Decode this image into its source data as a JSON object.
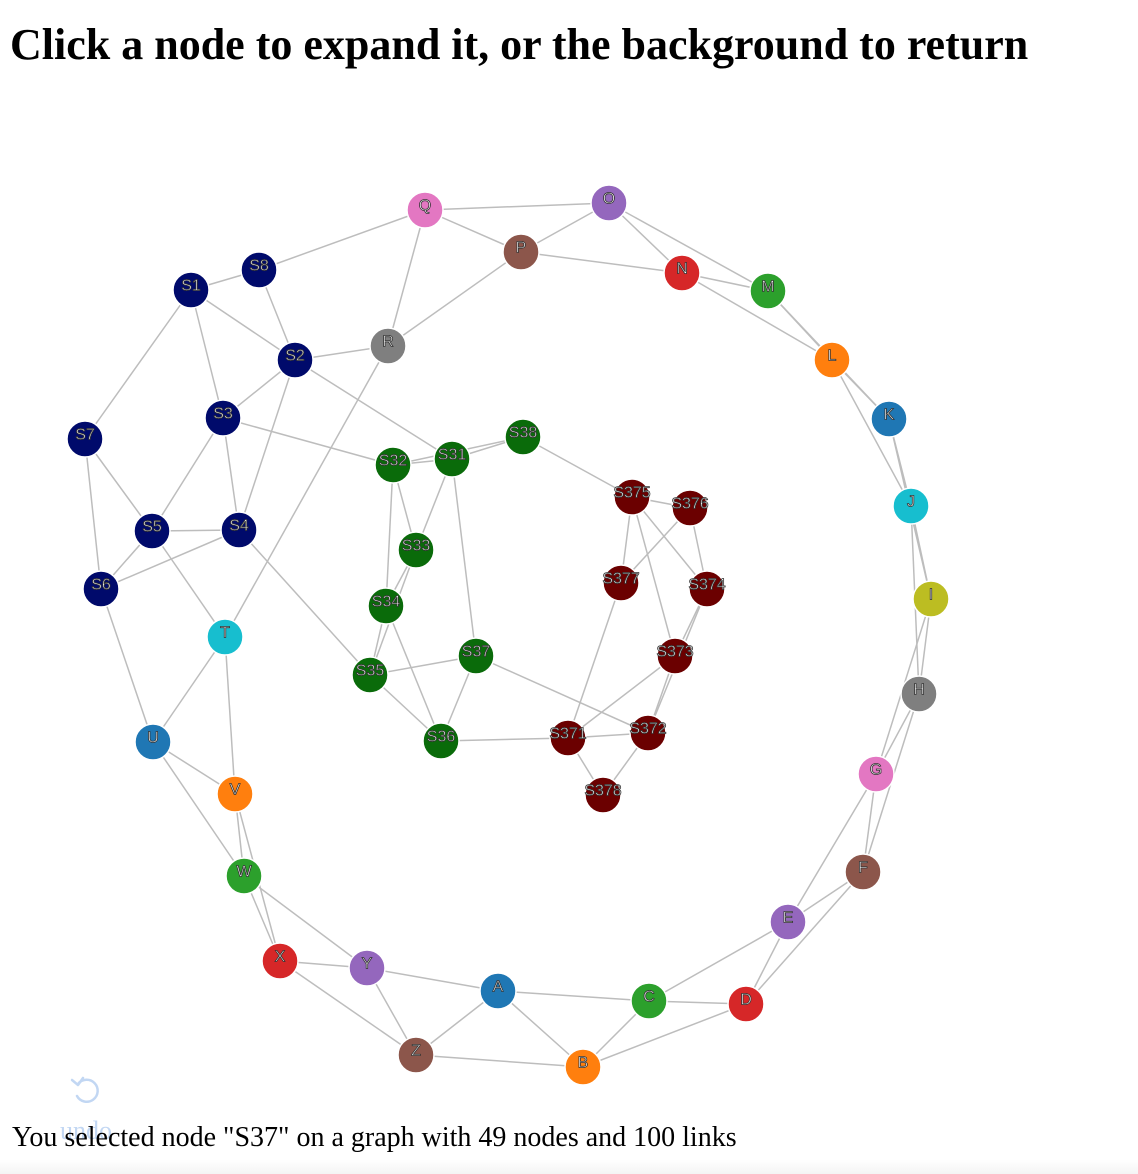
{
  "heading": "Click a node to expand it, or the background to return",
  "status": {
    "text": "You selected node \"S37\" on a graph with 49 nodes and 100 links",
    "selected_node": "S37",
    "node_count": 49,
    "link_count": 100
  },
  "undo": {
    "label": "undo",
    "icon": "undo-arrow-icon"
  },
  "graph": {
    "link_color": "#bdbdbd",
    "nodes": [
      {
        "id": "A",
        "color": "#1f77b4"
      },
      {
        "id": "B",
        "color": "#ff7f0e"
      },
      {
        "id": "C",
        "color": "#2ca02c"
      },
      {
        "id": "D",
        "color": "#d62728"
      },
      {
        "id": "E",
        "color": "#9467bd"
      },
      {
        "id": "F",
        "color": "#8c564b"
      },
      {
        "id": "G",
        "color": "#e377c2"
      },
      {
        "id": "H",
        "color": "#7f7f7f"
      },
      {
        "id": "I",
        "color": "#bcbd22"
      },
      {
        "id": "J",
        "color": "#17becf"
      },
      {
        "id": "K",
        "color": "#1f77b4"
      },
      {
        "id": "L",
        "color": "#ff7f0e"
      },
      {
        "id": "M",
        "color": "#2ca02c"
      },
      {
        "id": "N",
        "color": "#d62728"
      },
      {
        "id": "O",
        "color": "#9467bd"
      },
      {
        "id": "P",
        "color": "#8c564b"
      },
      {
        "id": "Q",
        "color": "#e377c2"
      },
      {
        "id": "R",
        "color": "#7f7f7f"
      },
      {
        "id": "T",
        "color": "#17becf"
      },
      {
        "id": "U",
        "color": "#1f77b4"
      },
      {
        "id": "V",
        "color": "#ff7f0e"
      },
      {
        "id": "W",
        "color": "#2ca02c"
      },
      {
        "id": "X",
        "color": "#d62728"
      },
      {
        "id": "Y",
        "color": "#9467bd"
      },
      {
        "id": "Z",
        "color": "#8c564b"
      },
      {
        "id": "S1",
        "color": "#000a6b"
      },
      {
        "id": "S2",
        "color": "#000a6b"
      },
      {
        "id": "S3",
        "color": "#000a6b"
      },
      {
        "id": "S4",
        "color": "#000a6b"
      },
      {
        "id": "S5",
        "color": "#000a6b"
      },
      {
        "id": "S6",
        "color": "#000a6b"
      },
      {
        "id": "S7",
        "color": "#000a6b"
      },
      {
        "id": "S8",
        "color": "#000a6b"
      },
      {
        "id": "S31",
        "color": "#0a6b0a"
      },
      {
        "id": "S32",
        "color": "#0a6b0a"
      },
      {
        "id": "S33",
        "color": "#0a6b0a"
      },
      {
        "id": "S34",
        "color": "#0a6b0a"
      },
      {
        "id": "S35",
        "color": "#0a6b0a"
      },
      {
        "id": "S36",
        "color": "#0a6b0a"
      },
      {
        "id": "S37",
        "color": "#0a6b0a"
      },
      {
        "id": "S38",
        "color": "#0a6b0a"
      },
      {
        "id": "S371",
        "color": "#6b0000"
      },
      {
        "id": "S372",
        "color": "#6b0000"
      },
      {
        "id": "S373",
        "color": "#6b0000"
      },
      {
        "id": "S374",
        "color": "#6b0000"
      },
      {
        "id": "S375",
        "color": "#6b0000"
      },
      {
        "id": "S376",
        "color": "#6b0000"
      },
      {
        "id": "S377",
        "color": "#6b0000"
      },
      {
        "id": "S378",
        "color": "#6b0000"
      }
    ],
    "links": [
      [
        "A",
        "B"
      ],
      [
        "A",
        "C"
      ],
      [
        "A",
        "Z"
      ],
      [
        "A",
        "Y"
      ],
      [
        "B",
        "C"
      ],
      [
        "B",
        "D"
      ],
      [
        "B",
        "Z"
      ],
      [
        "C",
        "D"
      ],
      [
        "C",
        "E"
      ],
      [
        "D",
        "E"
      ],
      [
        "D",
        "F"
      ],
      [
        "E",
        "F"
      ],
      [
        "E",
        "G"
      ],
      [
        "F",
        "G"
      ],
      [
        "F",
        "H"
      ],
      [
        "G",
        "H"
      ],
      [
        "G",
        "I"
      ],
      [
        "H",
        "I"
      ],
      [
        "H",
        "J"
      ],
      [
        "I",
        "J"
      ],
      [
        "I",
        "K"
      ],
      [
        "J",
        "K"
      ],
      [
        "J",
        "L"
      ],
      [
        "K",
        "L"
      ],
      [
        "K",
        "M"
      ],
      [
        "L",
        "M"
      ],
      [
        "L",
        "N"
      ],
      [
        "M",
        "N"
      ],
      [
        "M",
        "O"
      ],
      [
        "N",
        "O"
      ],
      [
        "N",
        "P"
      ],
      [
        "O",
        "P"
      ],
      [
        "O",
        "Q"
      ],
      [
        "P",
        "Q"
      ],
      [
        "P",
        "R"
      ],
      [
        "Q",
        "R"
      ],
      [
        "Q",
        "S8"
      ],
      [
        "R",
        "S2"
      ],
      [
        "R",
        "T"
      ],
      [
        "T",
        "S5"
      ],
      [
        "T",
        "U"
      ],
      [
        "T",
        "V"
      ],
      [
        "U",
        "V"
      ],
      [
        "U",
        "W"
      ],
      [
        "U",
        "S6"
      ],
      [
        "V",
        "W"
      ],
      [
        "V",
        "X"
      ],
      [
        "W",
        "X"
      ],
      [
        "W",
        "Y"
      ],
      [
        "X",
        "Y"
      ],
      [
        "X",
        "Z"
      ],
      [
        "Y",
        "Z"
      ],
      [
        "S1",
        "S8"
      ],
      [
        "S1",
        "S2"
      ],
      [
        "S1",
        "S3"
      ],
      [
        "S1",
        "S7"
      ],
      [
        "S2",
        "S8"
      ],
      [
        "S2",
        "S3"
      ],
      [
        "S2",
        "S4"
      ],
      [
        "S2",
        "S31"
      ],
      [
        "S3",
        "S4"
      ],
      [
        "S3",
        "S5"
      ],
      [
        "S3",
        "S32"
      ],
      [
        "S4",
        "S5"
      ],
      [
        "S4",
        "S6"
      ],
      [
        "S4",
        "S35"
      ],
      [
        "S5",
        "S6"
      ],
      [
        "S5",
        "S7"
      ],
      [
        "S6",
        "S7"
      ],
      [
        "S31",
        "S32"
      ],
      [
        "S31",
        "S38"
      ],
      [
        "S31",
        "S33"
      ],
      [
        "S31",
        "S37"
      ],
      [
        "S32",
        "S38"
      ],
      [
        "S32",
        "S33"
      ],
      [
        "S32",
        "S34"
      ],
      [
        "S33",
        "S34"
      ],
      [
        "S33",
        "S35"
      ],
      [
        "S34",
        "S35"
      ],
      [
        "S34",
        "S36"
      ],
      [
        "S35",
        "S36"
      ],
      [
        "S35",
        "S37"
      ],
      [
        "S36",
        "S37"
      ],
      [
        "S36",
        "S371"
      ],
      [
        "S37",
        "S372"
      ],
      [
        "S38",
        "S375"
      ],
      [
        "S371",
        "S372"
      ],
      [
        "S371",
        "S373"
      ],
      [
        "S371",
        "S377"
      ],
      [
        "S371",
        "S378"
      ],
      [
        "S372",
        "S373"
      ],
      [
        "S372",
        "S374"
      ],
      [
        "S372",
        "S378"
      ],
      [
        "S373",
        "S374"
      ],
      [
        "S373",
        "S375"
      ],
      [
        "S374",
        "S375"
      ],
      [
        "S374",
        "S376"
      ],
      [
        "S375",
        "S376"
      ],
      [
        "S375",
        "S377"
      ],
      [
        "S376",
        "S377"
      ]
    ]
  }
}
